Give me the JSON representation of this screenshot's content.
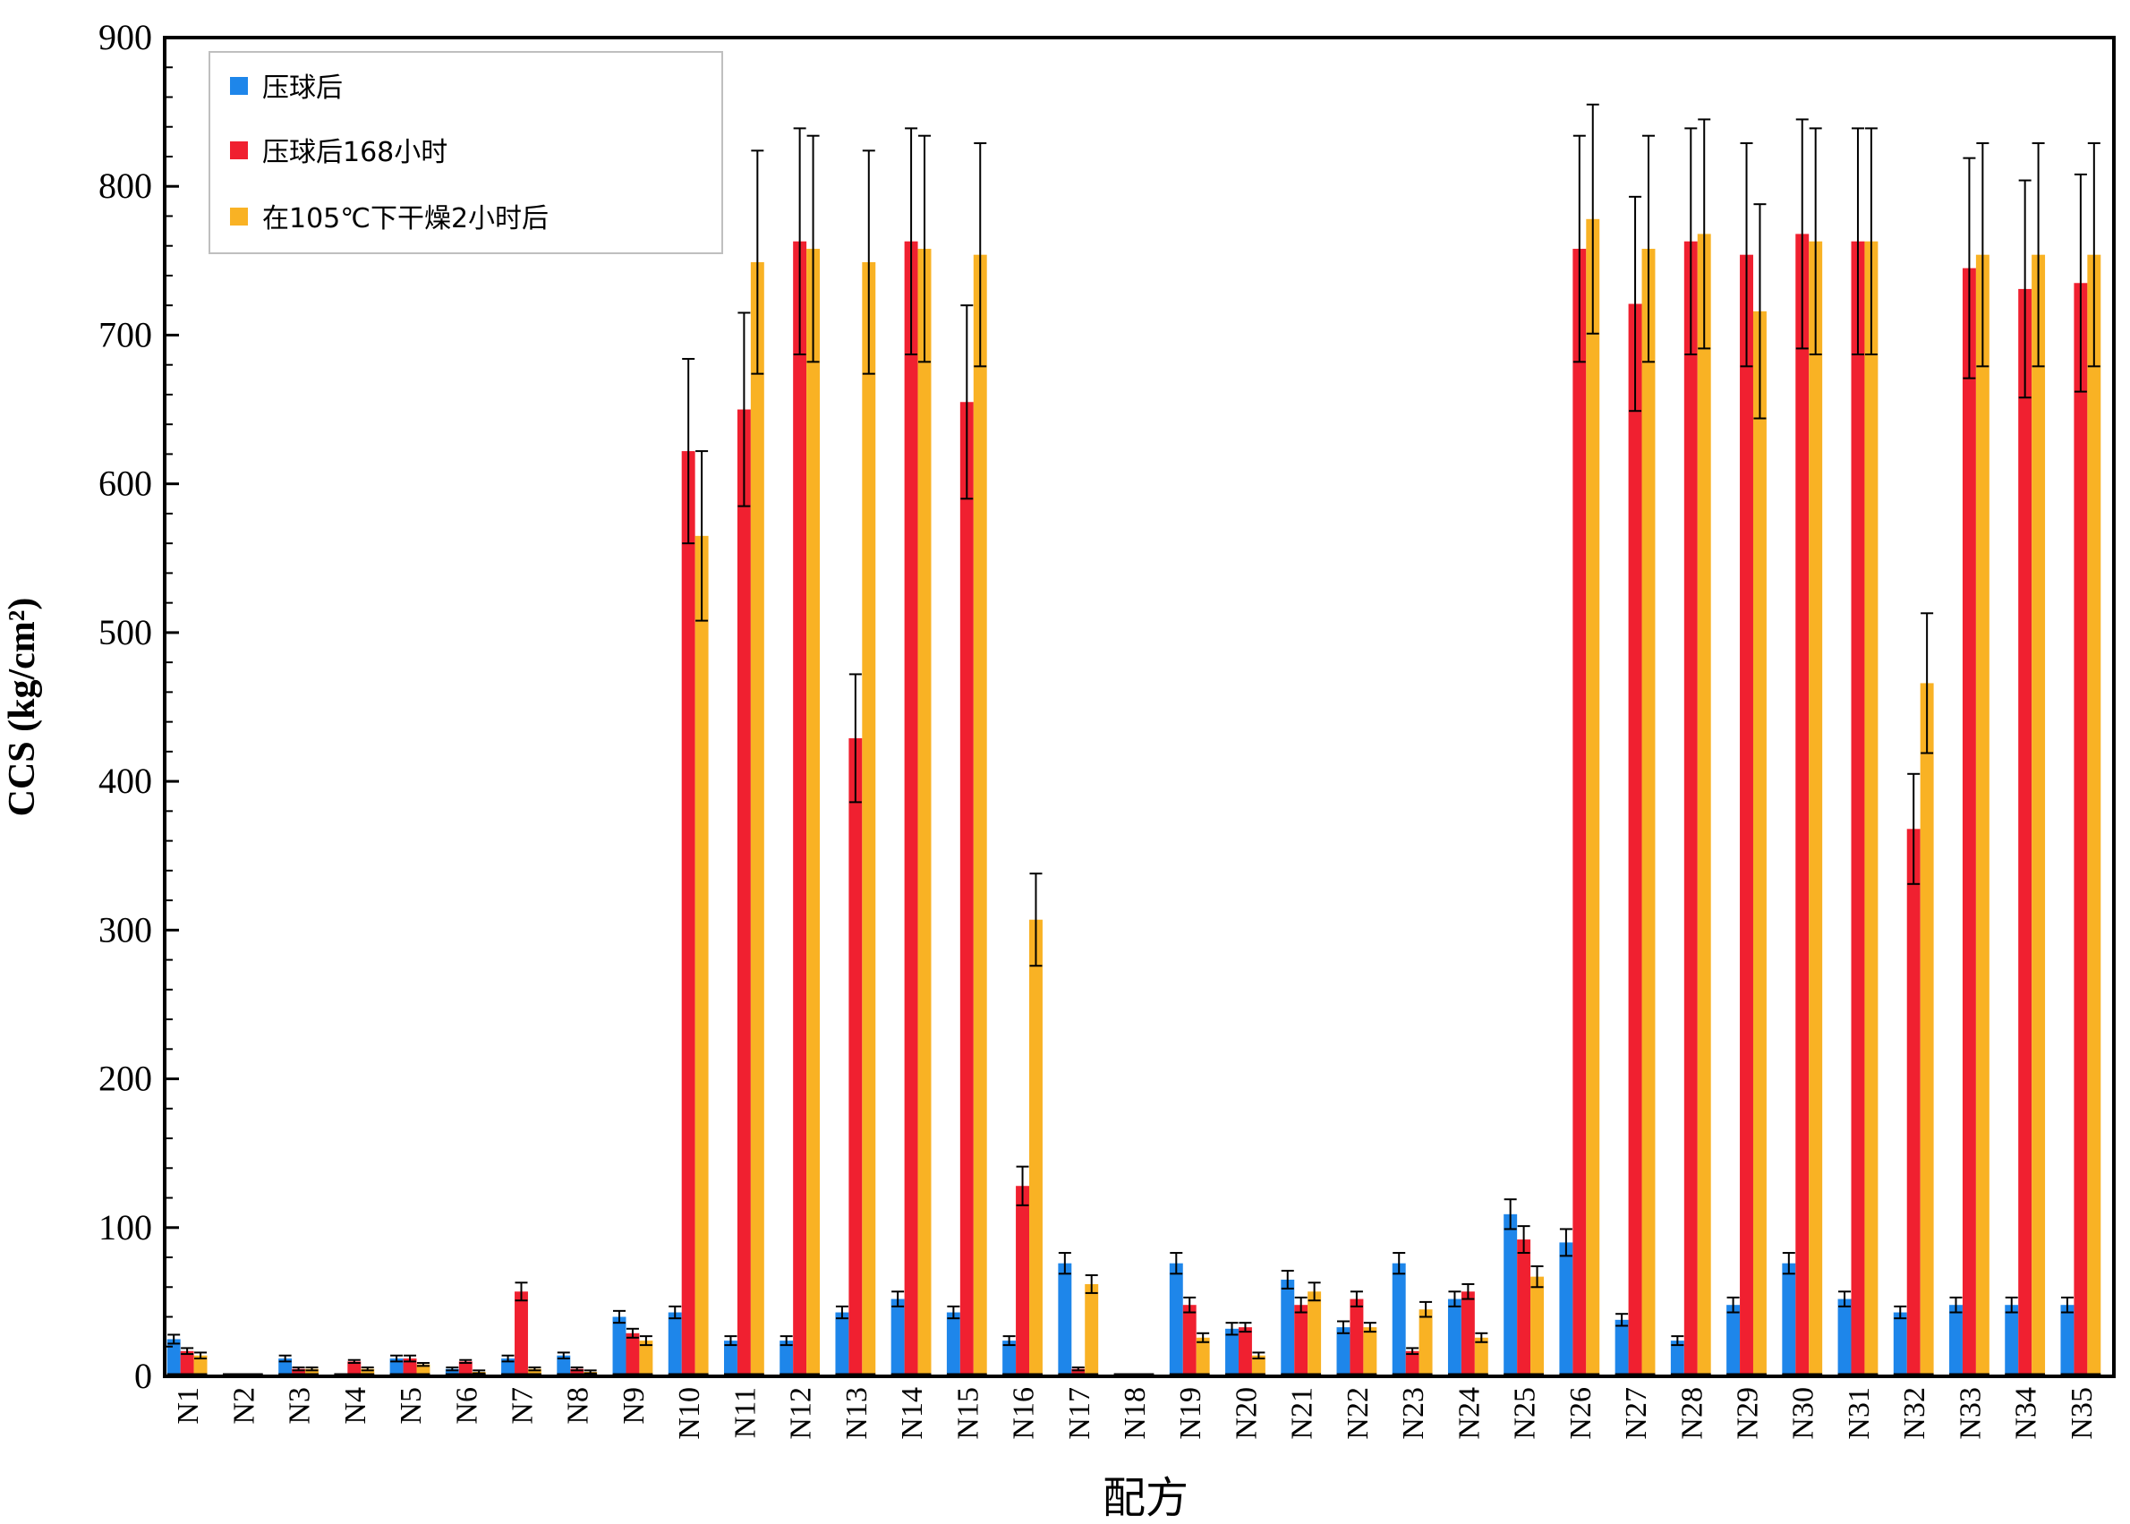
{
  "chart_data": {
    "type": "bar",
    "xlabel": "配方",
    "ylabel": "CCS (kg/cm²)",
    "ylim": [
      0,
      900
    ],
    "yticks": [
      0,
      100,
      200,
      300,
      400,
      500,
      600,
      700,
      800,
      900
    ],
    "grid": false,
    "legend_position": "top-left",
    "categories": [
      "N1",
      "N2",
      "N3",
      "N4",
      "N5",
      "N6",
      "N7",
      "N8",
      "N9",
      "N10",
      "N11",
      "N12",
      "N13",
      "N14",
      "N15",
      "N16",
      "N17",
      "N18",
      "N19",
      "N20",
      "N21",
      "N22",
      "N23",
      "N24",
      "N25",
      "N26",
      "N27",
      "N28",
      "N29",
      "N30",
      "N31",
      "N32",
      "N33",
      "N34",
      "N35"
    ],
    "series": [
      {
        "name": "压球后",
        "color": "#1E86EA",
        "values": [
          25,
          0,
          12,
          0,
          12,
          5,
          12,
          14,
          40,
          43,
          24,
          24,
          43,
          52,
          43,
          24,
          76,
          0,
          76,
          32,
          65,
          33,
          76,
          52,
          109,
          90,
          38,
          24,
          48,
          76,
          52,
          43,
          48,
          48,
          48
        ],
        "errors": [
          3,
          0,
          2,
          0,
          2,
          1,
          2,
          2,
          4,
          4,
          3,
          3,
          4,
          5,
          4,
          3,
          7,
          0,
          7,
          4,
          6,
          4,
          7,
          5,
          10,
          9,
          4,
          3,
          5,
          7,
          5,
          4,
          5,
          5,
          5
        ]
      },
      {
        "name": "压球后168小时",
        "color": "#F02030",
        "values": [
          17,
          0,
          5,
          10,
          12,
          10,
          57,
          5,
          29,
          622,
          650,
          763,
          429,
          763,
          655,
          128,
          5,
          0,
          48,
          33,
          48,
          52,
          17,
          57,
          92,
          758,
          721,
          763,
          754,
          768,
          763,
          368,
          745,
          731,
          735
        ],
        "errors": [
          2,
          0,
          1,
          1,
          2,
          1,
          6,
          1,
          3,
          62,
          65,
          76,
          43,
          76,
          65,
          13,
          1,
          0,
          5,
          3,
          5,
          5,
          2,
          5,
          9,
          76,
          72,
          76,
          75,
          77,
          76,
          37,
          74,
          73,
          73
        ]
      },
      {
        "name": "在105℃下干燥2小时后",
        "color": "#F9B224",
        "values": [
          14,
          0,
          5,
          5,
          8,
          3,
          5,
          3,
          24,
          565,
          749,
          758,
          749,
          758,
          754,
          307,
          62,
          0,
          26,
          14,
          57,
          33,
          45,
          26,
          67,
          778,
          758,
          768,
          716,
          763,
          763,
          466,
          754,
          754,
          754
        ],
        "errors": [
          2,
          0,
          1,
          1,
          1,
          1,
          1,
          1,
          3,
          57,
          75,
          76,
          75,
          76,
          75,
          31,
          6,
          0,
          3,
          2,
          6,
          3,
          5,
          3,
          7,
          77,
          76,
          77,
          72,
          76,
          76,
          47,
          75,
          75,
          75
        ]
      }
    ]
  }
}
